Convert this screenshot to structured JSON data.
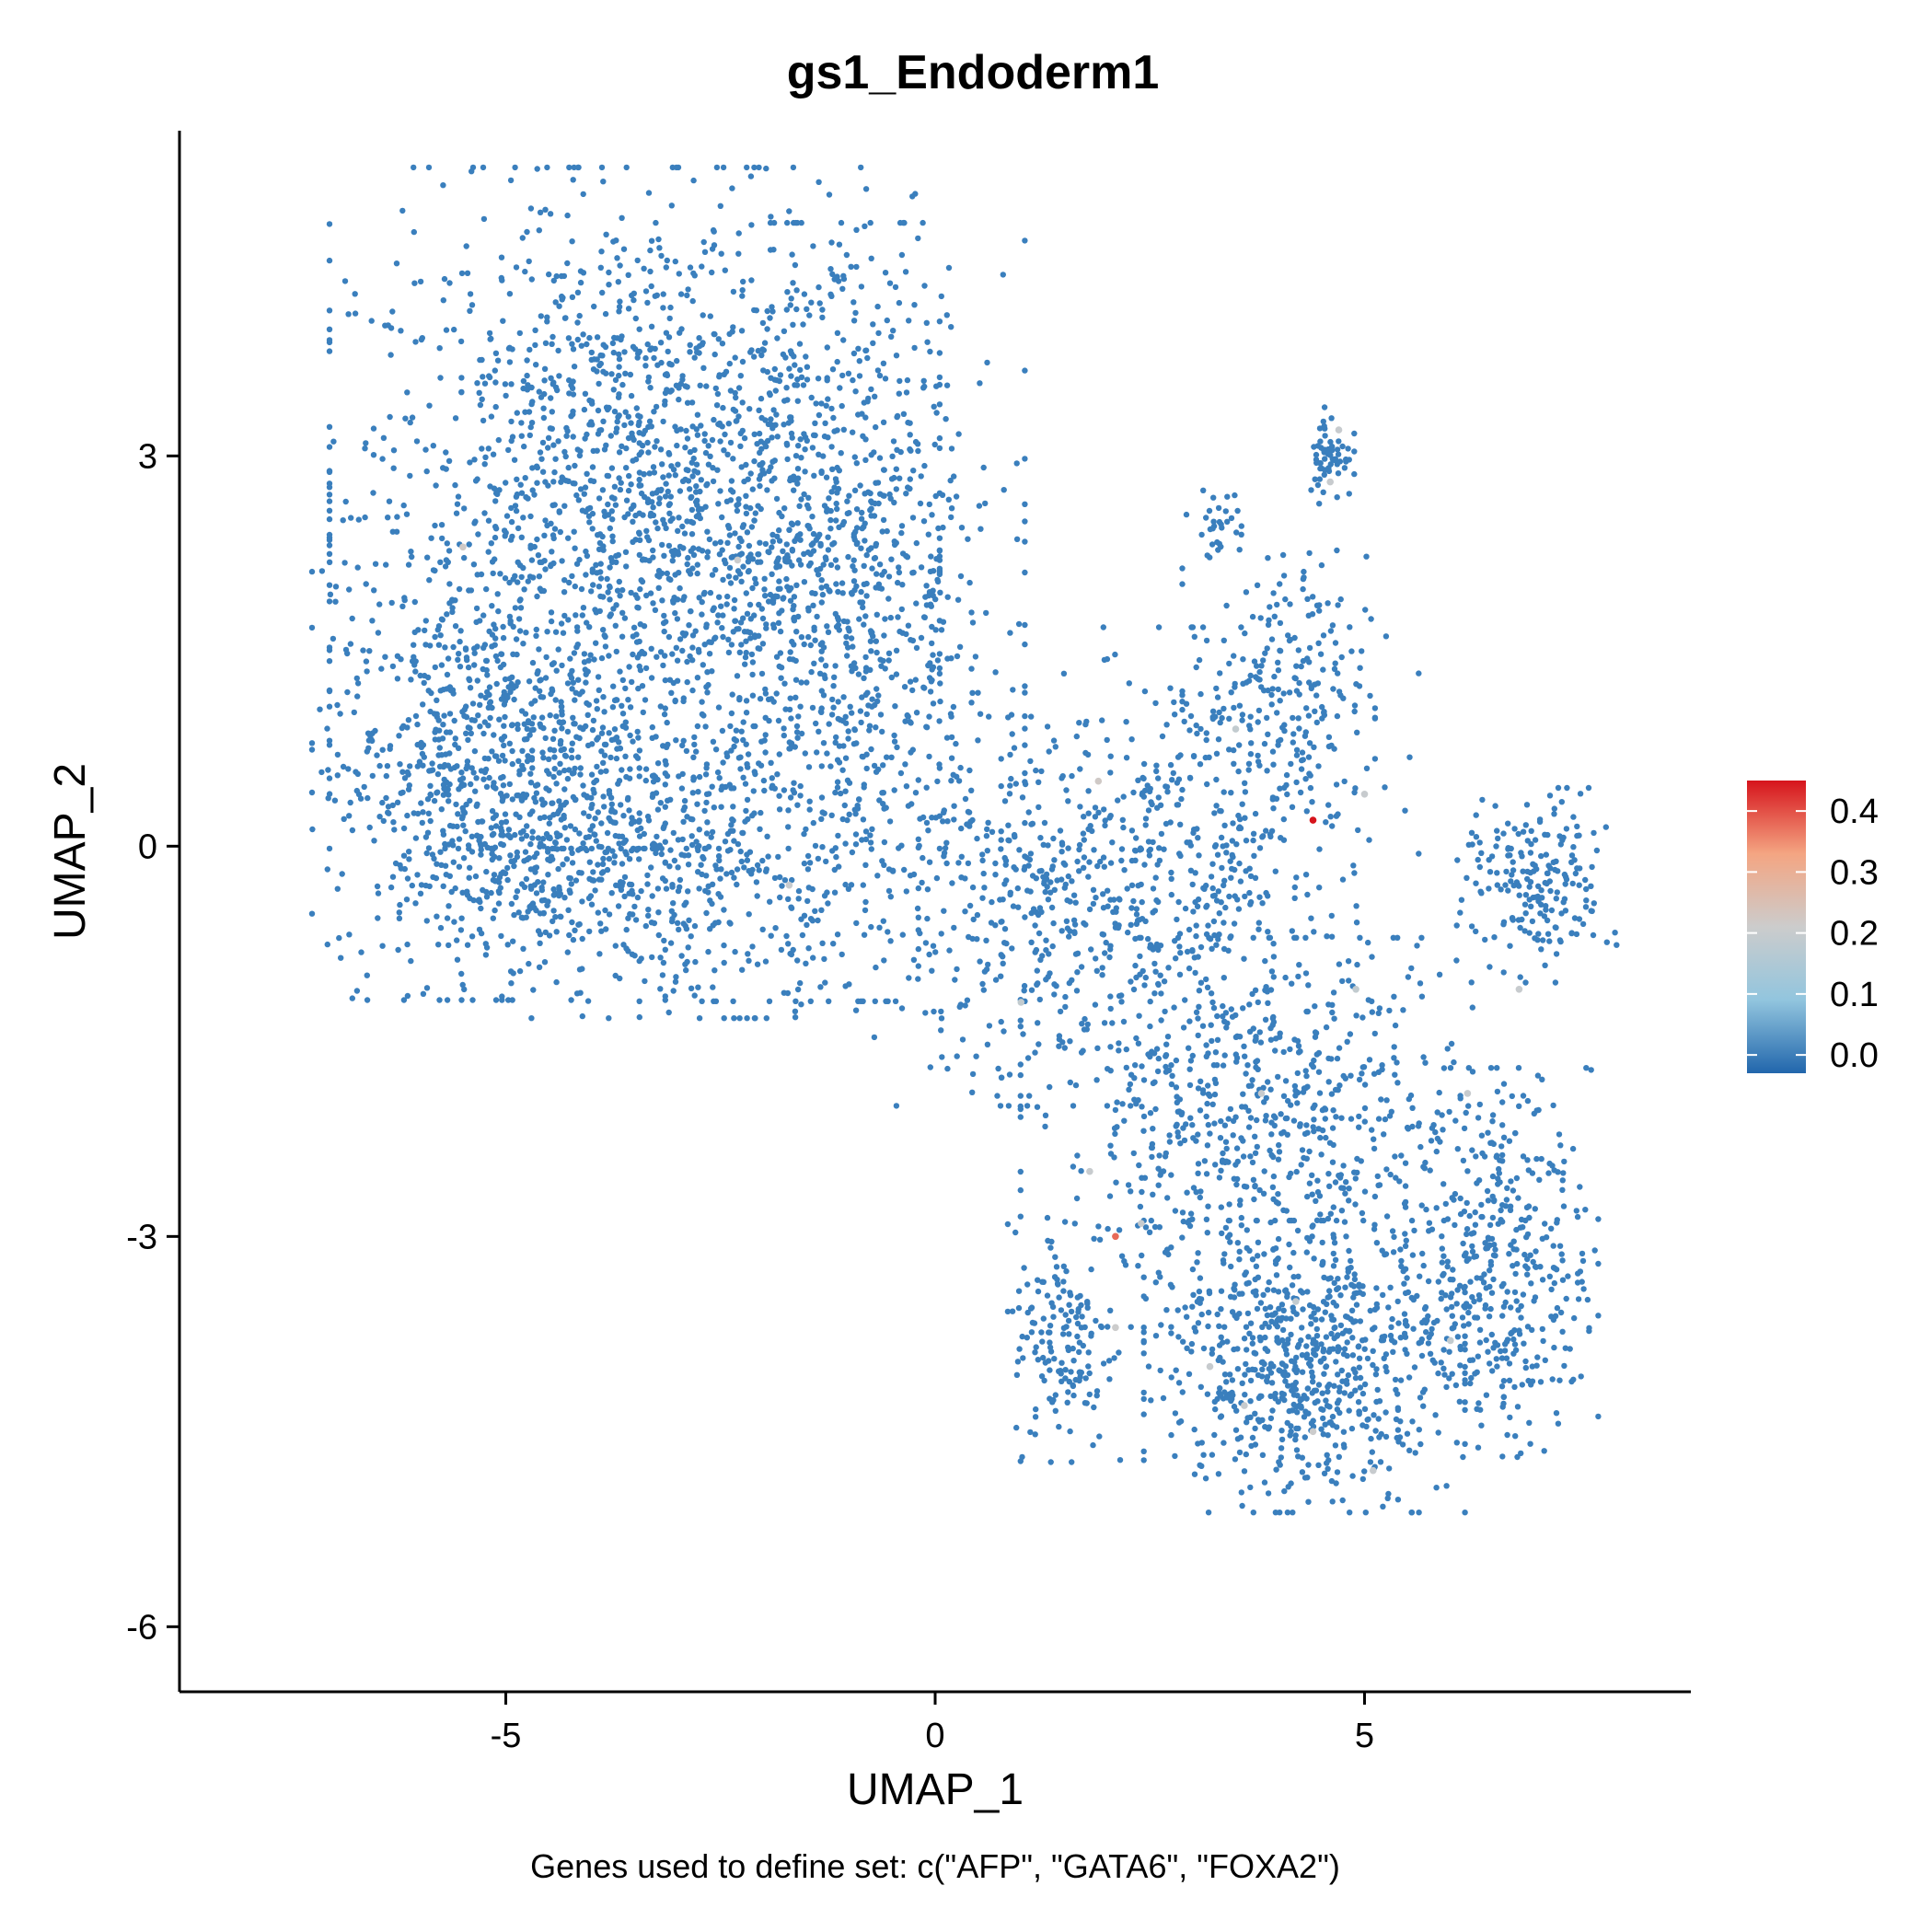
{
  "chart_data": {
    "type": "scatter",
    "title": "gs1_Endoderm1",
    "xlabel": "UMAP_1",
    "ylabel": "UMAP_2",
    "caption": "Genes used to define set: c(\"AFP\", \"GATA6\", \"FOXA2\")",
    "xlim": [
      -8.8,
      8.8
    ],
    "ylim": [
      -6.5,
      5.5
    ],
    "x_ticks": [
      -5,
      0,
      5
    ],
    "x_tick_labels": [
      "-5",
      "0",
      "5"
    ],
    "y_ticks": [
      -6,
      -3,
      0,
      3
    ],
    "y_tick_labels": [
      "-6",
      "-3",
      "0",
      "3"
    ],
    "grid": false,
    "legend_placement": "right",
    "colorbar": {
      "min": -0.03,
      "max": 0.45,
      "ticks": [
        0.0,
        0.1,
        0.2,
        0.3,
        0.4
      ],
      "tick_labels": [
        "0.0",
        "0.1",
        "0.2",
        "0.3",
        "0.4"
      ],
      "colors": [
        "#2166ac",
        "#92c5de",
        "#cccccc",
        "#f4a582",
        "#d6141c"
      ]
    },
    "point_color_default": "#3a7fbd",
    "clusters": [
      {
        "x": -3.5,
        "y": 2.6,
        "sx": 1.9,
        "sy": 1.4,
        "n": 1700,
        "value": 0.01
      },
      {
        "x": -5.2,
        "y": 0.5,
        "sx": 1.1,
        "sy": 0.9,
        "n": 800,
        "value": 0.01
      },
      {
        "x": -1.2,
        "y": 1.8,
        "sx": 1.2,
        "sy": 1.6,
        "n": 900,
        "value": 0.01
      },
      {
        "x": -3.0,
        "y": -0.2,
        "sx": 1.5,
        "sy": 0.6,
        "n": 500,
        "value": 0.01
      },
      {
        "x": 1.2,
        "y": -0.5,
        "sx": 1.2,
        "sy": 0.8,
        "n": 400,
        "value": 0.01
      },
      {
        "x": 3.2,
        "y": 0.0,
        "sx": 1.3,
        "sy": 0.9,
        "n": 400,
        "value": 0.01
      },
      {
        "x": 3.8,
        "y": -2.2,
        "sx": 1.5,
        "sy": 0.8,
        "n": 700,
        "value": 0.02
      },
      {
        "x": 4.3,
        "y": -4.0,
        "sx": 1.0,
        "sy": 0.6,
        "n": 700,
        "value": 0.01
      },
      {
        "x": 6.6,
        "y": -3.2,
        "sx": 0.6,
        "sy": 0.8,
        "n": 400,
        "value": 0.01
      },
      {
        "x": 7.0,
        "y": -0.3,
        "sx": 0.5,
        "sy": 0.4,
        "n": 200,
        "value": 0.01
      },
      {
        "x": 4.0,
        "y": 1.2,
        "sx": 0.6,
        "sy": 0.6,
        "n": 200,
        "value": 0.01
      },
      {
        "x": 1.5,
        "y": -3.8,
        "sx": 0.35,
        "sy": 0.5,
        "n": 150,
        "value": 0.01
      },
      {
        "x": 4.6,
        "y": 3.0,
        "sx": 0.15,
        "sy": 0.2,
        "n": 60,
        "value": 0.01
      },
      {
        "x": 3.3,
        "y": 2.5,
        "sx": 0.2,
        "sy": 0.15,
        "n": 30,
        "value": 0.01
      }
    ],
    "highlighted_points": [
      {
        "x": 4.4,
        "y": 0.2,
        "value": 0.45
      },
      {
        "x": 2.1,
        "y": -3.0,
        "value": 0.38
      },
      {
        "x": -5.5,
        "y": 2.3,
        "value": 0.22
      },
      {
        "x": -2.3,
        "y": 2.2,
        "value": 0.21
      },
      {
        "x": 1.9,
        "y": 0.5,
        "value": 0.22
      },
      {
        "x": 4.7,
        "y": 3.2,
        "value": 0.2
      },
      {
        "x": 4.6,
        "y": 2.8,
        "value": 0.2
      },
      {
        "x": 3.8,
        "y": -1.9,
        "value": 0.2
      },
      {
        "x": 2.4,
        "y": -2.9,
        "value": 0.2
      },
      {
        "x": 1.8,
        "y": -2.5,
        "value": 0.2
      },
      {
        "x": 2.1,
        "y": -3.7,
        "value": 0.21
      },
      {
        "x": 4.4,
        "y": -4.5,
        "value": 0.21
      },
      {
        "x": 6.8,
        "y": -1.1,
        "value": 0.2
      },
      {
        "x": 6.2,
        "y": -1.9,
        "value": 0.2
      },
      {
        "x": -1.7,
        "y": -0.3,
        "value": 0.2
      },
      {
        "x": 3.5,
        "y": 0.9,
        "value": 0.19
      },
      {
        "x": 5.0,
        "y": 0.4,
        "value": 0.2
      },
      {
        "x": 4.9,
        "y": -1.1,
        "value": 0.19
      },
      {
        "x": 1.0,
        "y": -1.2,
        "value": 0.19
      },
      {
        "x": 5.1,
        "y": -4.8,
        "value": 0.2
      },
      {
        "x": 3.6,
        "y": -4.3,
        "value": 0.2
      },
      {
        "x": 4.2,
        "y": -3.5,
        "value": 0.19
      },
      {
        "x": 6.0,
        "y": -3.8,
        "value": 0.19
      },
      {
        "x": 3.2,
        "y": -4.0,
        "value": 0.2
      }
    ]
  }
}
